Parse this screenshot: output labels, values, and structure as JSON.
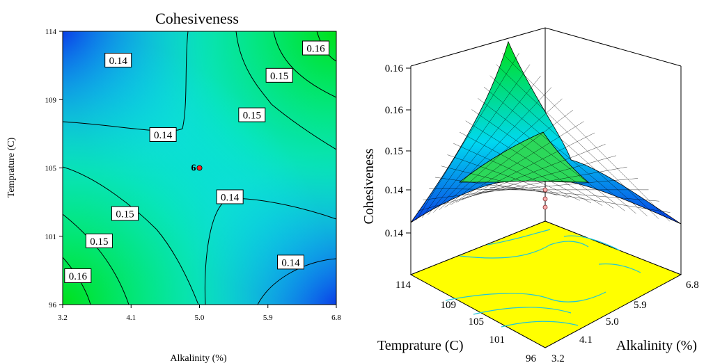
{
  "colors": {
    "low": "#0a3ee6",
    "mid": "#00f0f0",
    "high": "#00e01a",
    "surface_base": "#ffff00",
    "surface_contour": "#1fc6d9",
    "design_point": "#ff2020"
  },
  "chart_data": [
    {
      "type": "heatmap",
      "subtype": "contour",
      "title": "Cohesiveness",
      "xlabel": "Alkalinity (%)",
      "ylabel": "Temprature (C)",
      "xlim": [
        3.2,
        6.8
      ],
      "ylim": [
        96,
        114
      ],
      "x_ticks": [
        "3.2",
        "4.1",
        "5.0",
        "5.9",
        "6.8"
      ],
      "y_ticks": [
        "96",
        "101",
        "105",
        "109",
        "114"
      ],
      "contour_labels": [
        {
          "text": "0.14",
          "x": 3.93,
          "y": 112.1
        },
        {
          "text": "0.16",
          "x": 6.53,
          "y": 112.9
        },
        {
          "text": "0.15",
          "x": 6.05,
          "y": 111.1
        },
        {
          "text": "0.15",
          "x": 5.69,
          "y": 108.5
        },
        {
          "text": "0.14",
          "x": 4.52,
          "y": 107.2
        },
        {
          "text": "0.14",
          "x": 5.4,
          "y": 103.1
        },
        {
          "text": "0.15",
          "x": 4.02,
          "y": 102.0
        },
        {
          "text": "0.15",
          "x": 3.68,
          "y": 100.2
        },
        {
          "text": "0.16",
          "x": 3.4,
          "y": 97.9
        },
        {
          "text": "0.14",
          "x": 6.2,
          "y": 98.8
        }
      ],
      "design_point": {
        "x": 5.0,
        "y": 105,
        "label": "6"
      }
    },
    {
      "type": "surface",
      "zlabel": "Cohesiveness",
      "xlabel": "Alkalinity (%)",
      "ylabel": "Temprature (C)",
      "x_ticks": [
        "3.2",
        "4.1",
        "5.0",
        "5.9",
        "6.8"
      ],
      "y_ticks": [
        "96",
        "101",
        "105",
        "109",
        "114"
      ],
      "z_ticks": [
        "0.14",
        "0.14",
        "0.15",
        "0.16",
        "0.16"
      ]
    }
  ]
}
